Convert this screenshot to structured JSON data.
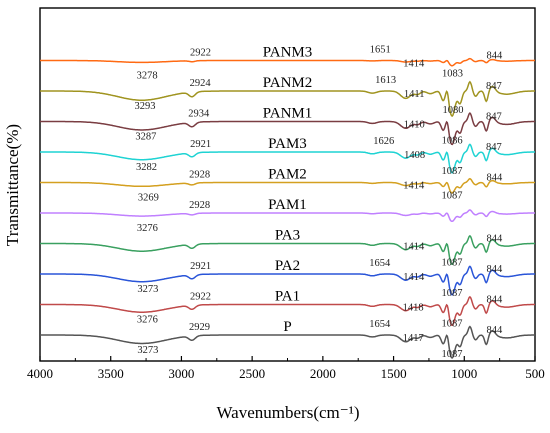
{
  "chart_data": {
    "type": "line",
    "xlabel": "Wavenumbers(cm⁻¹)",
    "ylabel": "Transmittance(%)",
    "xlim": [
      4000,
      500
    ],
    "x_ticks": [
      4000,
      3500,
      3000,
      2500,
      2000,
      1500,
      1000,
      500
    ],
    "y_ticks_shown": false,
    "grid": false,
    "series": [
      {
        "name": "PANM3",
        "color": "#ff6a13",
        "offset": 10,
        "amp": 0.25,
        "peaks": [
          "3278",
          "2922",
          "1651",
          "1414",
          "1083",
          "844"
        ]
      },
      {
        "name": "PANM2",
        "color": "#a09420",
        "offset": 9,
        "amp": 1.2,
        "peaks": [
          "3293",
          "2924",
          "1613",
          "1411",
          "1080",
          "847"
        ]
      },
      {
        "name": "PANM1",
        "color": "#7a3d42",
        "offset": 8,
        "amp": 1.1,
        "peaks": [
          "3287",
          "2934",
          "1410",
          "1086",
          "847"
        ]
      },
      {
        "name": "PAM3",
        "color": "#1fd3d3",
        "offset": 7,
        "amp": 1.0,
        "peaks": [
          "3282",
          "2921",
          "1626",
          "1408",
          "1087",
          "847"
        ]
      },
      {
        "name": "PAM2",
        "color": "#d4a020",
        "offset": 6,
        "amp": 0.5,
        "peaks": [
          "3269",
          "2928",
          "1414",
          "1087",
          "844"
        ]
      },
      {
        "name": "PAM1",
        "color": "#c080ff",
        "offset": 5,
        "amp": 0.4,
        "peaks": [
          "3276",
          "2928"
        ]
      },
      {
        "name": "PA3",
        "color": "#3aa060",
        "offset": 4,
        "amp": 1.0,
        "peaks": [
          "1414",
          "1087",
          "844"
        ]
      },
      {
        "name": "PA2",
        "color": "#2a55d8",
        "offset": 3,
        "amp": 1.0,
        "peaks": [
          "1654",
          "3273",
          "2921",
          "1414",
          "1087",
          "844"
        ]
      },
      {
        "name": "PA1",
        "color": "#c04a4a",
        "offset": 2,
        "amp": 1.0,
        "peaks": [
          "3276",
          "2922",
          "1418",
          "1087",
          "844"
        ]
      },
      {
        "name": "P",
        "color": "#555555",
        "offset": 1,
        "amp": 1.1,
        "peaks": [
          "3273",
          "2929",
          "1654",
          "1417",
          "1087",
          "844"
        ]
      }
    ]
  }
}
